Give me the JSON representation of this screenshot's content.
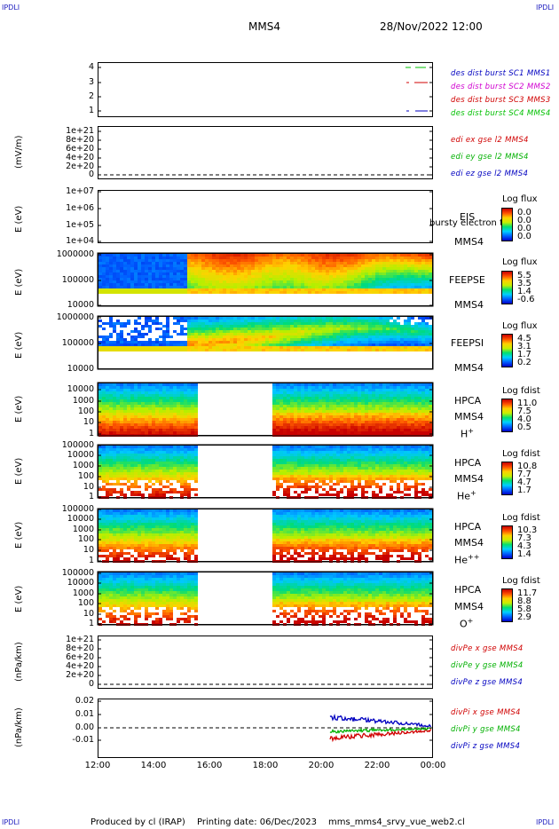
{
  "corner": {
    "tl": "IPDLI",
    "tr": "IPDLI",
    "bl": "IPDLI",
    "br": "IPDLI"
  },
  "header": {
    "spacecraft": "MMS4",
    "datetime": "28/Nov/2022 12:00"
  },
  "xaxis": {
    "ticks": [
      "12:00",
      "14:00",
      "16:00",
      "18:00",
      "20:00",
      "22:00",
      "00:00"
    ]
  },
  "panels": {
    "p1": {
      "yticks": [
        "4",
        "3",
        "2",
        "1"
      ],
      "labels": [
        "des dist burst SC1 MMS1",
        "des dist burst SC2 MMS2",
        "des dist burst SC3 MMS3",
        "des dist burst SC4 MMS4"
      ],
      "colors": [
        "#0000c0",
        "#d000d0",
        "#d00000",
        "#00c000"
      ]
    },
    "p2": {
      "ylabel": "(mV/m)",
      "yticks": [
        "1e+21",
        "8e+20",
        "6e+20",
        "4e+20",
        "2e+20",
        "0"
      ],
      "labels": [
        "edi ex gse l2 MMS4",
        "edi ey gse l2 MMS4",
        "edi ez gse l2 MMS4"
      ],
      "colors": [
        "#d00000",
        "#00b000",
        "#0000c0"
      ]
    },
    "p3": {
      "ylabel": "E (eV)",
      "yticks": [
        "1e+07",
        "1e+06",
        "1e+05",
        "1e+04"
      ],
      "inst": "EIS",
      "inst2": "MMS4",
      "extra": "bursty electron to",
      "cbtitle": "Log flux",
      "cbvals": [
        "0.0",
        "0.0",
        "0.0",
        "0.0"
      ]
    },
    "p4": {
      "ylabel": "E (eV)",
      "yticks": [
        "1000000",
        "100000",
        "10000"
      ],
      "inst": "FEEPSE",
      "inst2": "MMS4",
      "cbtitle": "Log flux",
      "cbvals": [
        "5.5",
        "3.5",
        "1.4",
        "-0.6"
      ]
    },
    "p5": {
      "ylabel": "E (eV)",
      "yticks": [
        "1000000",
        "100000",
        "10000"
      ],
      "inst": "FEEPSI",
      "inst2": "MMS4",
      "cbtitle": "Log flux",
      "cbvals": [
        "4.5",
        "3.1",
        "1.7",
        "0.2"
      ]
    },
    "p6": {
      "ylabel": "E (eV)",
      "yticks": [
        "10000",
        "1000",
        "100",
        "10",
        "1"
      ],
      "inst": "HPCA",
      "inst2": "MMS4",
      "species": "H",
      "sup": "+",
      "cbtitle": "Log fdist",
      "cbvals": [
        "11.0",
        "7.5",
        "4.0",
        "0.5"
      ]
    },
    "p7": {
      "ylabel": "E (eV)",
      "yticks": [
        "100000",
        "10000",
        "1000",
        "100",
        "10",
        "1"
      ],
      "inst": "HPCA",
      "inst2": "MMS4",
      "species": "He",
      "sup": "+",
      "cbtitle": "Log fdist",
      "cbvals": [
        "10.8",
        "7.7",
        "4.7",
        "1.7"
      ]
    },
    "p8": {
      "ylabel": "E (eV)",
      "yticks": [
        "100000",
        "10000",
        "1000",
        "100",
        "10",
        "1"
      ],
      "inst": "HPCA",
      "inst2": "MMS4",
      "species": "He",
      "sup": "++",
      "cbtitle": "Log fdist",
      "cbvals": [
        "10.3",
        "7.3",
        "4.3",
        "1.4"
      ]
    },
    "p9": {
      "ylabel": "E (eV)",
      "yticks": [
        "100000",
        "10000",
        "1000",
        "100",
        "10",
        "1"
      ],
      "inst": "HPCA",
      "inst2": "MMS4",
      "species": "O",
      "sup": "+",
      "cbtitle": "Log fdist",
      "cbvals": [
        "11.7",
        "8.8",
        "5.8",
        "2.9"
      ]
    },
    "p10": {
      "ylabel": "(nPa/km)",
      "yticks": [
        "1e+21",
        "8e+20",
        "6e+20",
        "4e+20",
        "2e+20",
        "0"
      ],
      "labels": [
        "divPe x gse MMS4",
        "divPe y gse MMS4",
        "divPe z gse MMS4"
      ],
      "colors": [
        "#d00000",
        "#00b000",
        "#0000c0"
      ]
    },
    "p11": {
      "ylabel": "(nPa/km)",
      "yticks": [
        "0.02",
        "0.01",
        "0.00",
        "-0.01"
      ],
      "labels": [
        "divPi x gse MMS4",
        "divPi y gse MMS4",
        "divPi z gse MMS4"
      ],
      "colors": [
        "#d00000",
        "#00b000",
        "#0000c0"
      ]
    }
  },
  "footer": {
    "produced": "Produced by cl (IRAP)",
    "printing": "Printing date: 06/Dec/2023",
    "file": "mms_mms4_srvy_vue_web2.cl"
  }
}
